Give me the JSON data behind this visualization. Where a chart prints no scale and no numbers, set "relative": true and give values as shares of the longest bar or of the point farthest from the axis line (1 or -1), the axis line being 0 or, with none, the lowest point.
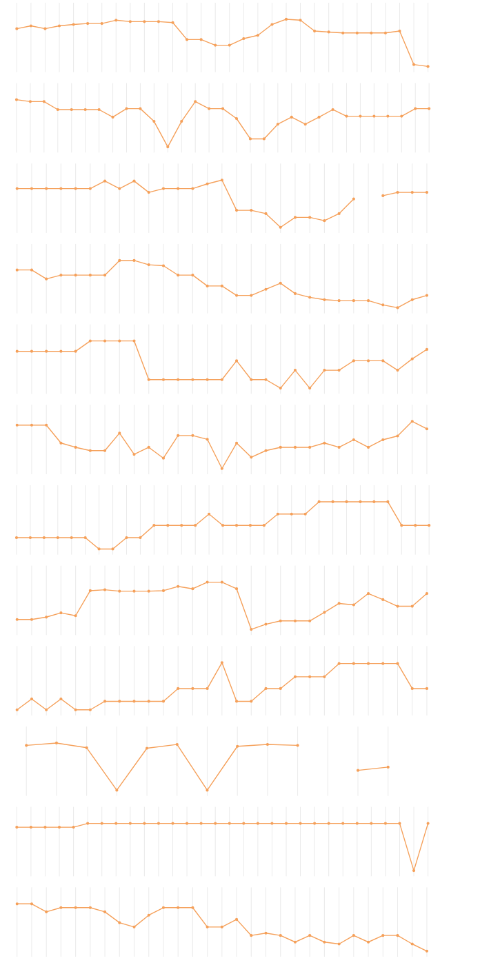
{
  "chart_data": [
    {
      "type": "line",
      "relative": true,
      "grid": "x",
      "marker": "circle",
      "categories": [
        null,
        null,
        null,
        null,
        null,
        null,
        null,
        null,
        null,
        null,
        null,
        null,
        null,
        null,
        null,
        null,
        null,
        null,
        null,
        null,
        null,
        null,
        null,
        null,
        null,
        null,
        null,
        null,
        null,
        null
      ],
      "series": [
        {
          "color": "#f5a05a",
          "values": [
            0.8,
            0.86,
            0.8,
            0.86,
            0.89,
            0.91,
            0.91,
            0.98,
            0.95,
            0.95,
            0.95,
            0.93,
            0.57,
            0.57,
            0.45,
            0.45,
            0.59,
            0.66,
            0.89,
            1,
            0.98,
            0.75,
            0.73,
            0.71,
            0.71,
            0.71,
            0.71,
            0.75,
            0.04,
            0
          ]
        }
      ]
    },
    {
      "type": "line",
      "relative": true,
      "grid": "x",
      "marker": "circle",
      "categories": [
        null,
        null,
        null,
        null,
        null,
        null,
        null,
        null,
        null,
        null,
        null,
        null,
        null,
        null,
        null,
        null,
        null,
        null,
        null,
        null,
        null,
        null,
        null,
        null,
        null,
        null,
        null,
        null,
        null,
        null,
        null
      ],
      "series": [
        {
          "color": "#f5a05a",
          "values": [
            1,
            0.96,
            0.96,
            0.79,
            0.79,
            0.79,
            0.79,
            0.63,
            0.81,
            0.81,
            0.54,
            0,
            0.54,
            0.96,
            0.81,
            0.81,
            0.6,
            0.17,
            0.17,
            0.48,
            0.63,
            0.48,
            0.63,
            0.79,
            0.65,
            0.65,
            0.65,
            0.65,
            0.65,
            0.81,
            0.81
          ]
        }
      ]
    },
    {
      "type": "line",
      "relative": true,
      "grid": "x",
      "marker": "circle",
      "categories": [
        null,
        null,
        null,
        null,
        null,
        null,
        null,
        null,
        null,
        null,
        null,
        null,
        null,
        null,
        null,
        null,
        null,
        null,
        null,
        null,
        null,
        null,
        null,
        null,
        null,
        null,
        null,
        null,
        null
      ],
      "series": [
        {
          "color": "#f5a05a",
          "values": [
            0.82,
            0.82,
            0.82,
            0.82,
            0.82,
            0.82,
            0.98,
            0.82,
            0.98,
            0.74,
            0.82,
            0.82,
            0.82,
            0.92,
            1,
            0.36,
            0.36,
            0.29,
            0,
            0.21,
            0.21,
            0.14,
            0.29,
            0.6,
            null,
            null,
            null,
            null,
            null
          ]
        },
        {
          "color": "#f5a05a",
          "values": [
            null,
            null,
            null,
            null,
            null,
            null,
            null,
            null,
            null,
            null,
            null,
            null,
            null,
            null,
            null,
            null,
            null,
            null,
            null,
            null,
            null,
            null,
            null,
            null,
            null,
            0.67,
            0.74,
            0.74,
            0.74
          ]
        }
      ]
    },
    {
      "type": "line",
      "relative": true,
      "grid": "x",
      "marker": "circle",
      "categories": [
        null,
        null,
        null,
        null,
        null,
        null,
        null,
        null,
        null,
        null,
        null,
        null,
        null,
        null,
        null,
        null,
        null,
        null,
        null,
        null,
        null,
        null,
        null,
        null,
        null,
        null,
        null,
        null,
        null
      ],
      "series": [
        {
          "color": "#f5a05a",
          "values": [
            0.8,
            0.8,
            0.61,
            0.69,
            0.69,
            0.69,
            0.69,
            1,
            1,
            0.91,
            0.89,
            0.69,
            0.69,
            0.46,
            0.46,
            0.26,
            0.26,
            0.39,
            0.52,
            0.3,
            0.22,
            0.17,
            0.15,
            0.15,
            0.15,
            0.06,
            0,
            0.17,
            0.26
          ]
        }
      ]
    },
    {
      "type": "line",
      "relative": true,
      "grid": "x",
      "marker": "circle",
      "categories": [
        null,
        null,
        null,
        null,
        null,
        null,
        null,
        null,
        null,
        null,
        null,
        null,
        null,
        null,
        null,
        null,
        null,
        null,
        null,
        null,
        null,
        null,
        null,
        null,
        null,
        null,
        null,
        null,
        null
      ],
      "series": [
        {
          "color": "#f5a05a",
          "values": [
            0.78,
            0.78,
            0.78,
            0.78,
            0.78,
            1,
            1,
            1,
            1,
            0.18,
            0.18,
            0.18,
            0.18,
            0.18,
            0.18,
            0.58,
            0.18,
            0.18,
            0,
            0.38,
            0,
            0.38,
            0.38,
            0.58,
            0.58,
            0.58,
            0.38,
            0.62,
            0.82
          ]
        }
      ]
    },
    {
      "type": "line",
      "relative": true,
      "grid": "x",
      "marker": "circle",
      "categories": [
        null,
        null,
        null,
        null,
        null,
        null,
        null,
        null,
        null,
        null,
        null,
        null,
        null,
        null,
        null,
        null,
        null,
        null,
        null,
        null,
        null,
        null,
        null,
        null,
        null,
        null,
        null,
        null,
        null
      ],
      "series": [
        {
          "color": "#f5a05a",
          "values": [
            0.92,
            0.92,
            0.92,
            0.54,
            0.45,
            0.38,
            0.38,
            0.75,
            0.3,
            0.45,
            0.22,
            0.7,
            0.7,
            0.62,
            0,
            0.54,
            0.24,
            0.38,
            0.45,
            0.45,
            0.45,
            0.54,
            0.45,
            0.61,
            0.45,
            0.61,
            0.69,
            1,
            0.84
          ]
        }
      ]
    },
    {
      "type": "line",
      "relative": true,
      "grid": "x",
      "marker": "circle",
      "categories": [
        null,
        null,
        null,
        null,
        null,
        null,
        null,
        null,
        null,
        null,
        null,
        null,
        null,
        null,
        null,
        null,
        null,
        null,
        null,
        null,
        null,
        null,
        null,
        null,
        null,
        null,
        null,
        null,
        null,
        null,
        null
      ],
      "series": [
        {
          "color": "#f5a05a",
          "values": [
            0.24,
            0.24,
            0.24,
            0.24,
            0.24,
            0.24,
            0,
            0,
            0.24,
            0.24,
            0.5,
            0.5,
            0.5,
            0.5,
            0.74,
            0.5,
            0.5,
            0.5,
            0.5,
            0.74,
            0.74,
            0.74,
            1,
            1,
            1,
            1,
            1,
            1,
            0.5,
            0.5,
            0.5
          ]
        }
      ]
    },
    {
      "type": "line",
      "relative": true,
      "grid": "x",
      "marker": "circle",
      "categories": [
        null,
        null,
        null,
        null,
        null,
        null,
        null,
        null,
        null,
        null,
        null,
        null,
        null,
        null,
        null,
        null,
        null,
        null,
        null,
        null,
        null,
        null,
        null,
        null,
        null,
        null,
        null,
        null,
        null
      ],
      "series": [
        {
          "color": "#f5a05a",
          "values": [
            0.21,
            0.21,
            0.26,
            0.35,
            0.29,
            0.82,
            0.84,
            0.81,
            0.81,
            0.81,
            0.82,
            0.91,
            0.86,
            1,
            1,
            0.86,
            0,
            0.11,
            0.18,
            0.18,
            0.18,
            0.36,
            0.55,
            0.52,
            0.76,
            0.63,
            0.49,
            0.49,
            0.76
          ]
        }
      ]
    },
    {
      "type": "line",
      "relative": true,
      "grid": "x",
      "marker": "circle",
      "categories": [
        null,
        null,
        null,
        null,
        null,
        null,
        null,
        null,
        null,
        null,
        null,
        null,
        null,
        null,
        null,
        null,
        null,
        null,
        null,
        null,
        null,
        null,
        null,
        null,
        null,
        null,
        null,
        null,
        null
      ],
      "series": [
        {
          "color": "#f5a05a",
          "values": [
            0,
            0.23,
            0,
            0.23,
            0,
            0,
            0.18,
            0.18,
            0.18,
            0.18,
            0.18,
            0.45,
            0.45,
            0.45,
            1,
            0.18,
            0.18,
            0.45,
            0.45,
            0.7,
            0.7,
            0.7,
            0.98,
            0.98,
            0.98,
            0.98,
            0.98,
            0.45,
            0.45
          ]
        }
      ]
    },
    {
      "type": "line",
      "relative": true,
      "grid": "x",
      "marker": "circle",
      "categories": [
        null,
        null,
        null,
        null,
        null,
        null,
        null,
        null,
        null,
        null,
        null,
        null,
        null
      ],
      "series": [
        {
          "color": "#f5a05a",
          "values": [
            0.95,
            1,
            0.9,
            0,
            0.89,
            0.97,
            0,
            0.93,
            0.97,
            0.95,
            null,
            null,
            null
          ]
        },
        {
          "color": "#f5a05a",
          "values": [
            null,
            null,
            null,
            null,
            null,
            null,
            null,
            null,
            null,
            null,
            null,
            0.42,
            0.49
          ]
        }
      ]
    },
    {
      "type": "line",
      "relative": true,
      "grid": "x",
      "marker": "circle",
      "categories": [
        null,
        null,
        null,
        null,
        null,
        null,
        null,
        null,
        null,
        null,
        null,
        null,
        null,
        null,
        null,
        null,
        null,
        null,
        null,
        null,
        null,
        null,
        null,
        null,
        null,
        null,
        null,
        null,
        null,
        null
      ],
      "series": [
        {
          "color": "#f5a05a",
          "values": [
            0.92,
            0.92,
            0.92,
            0.92,
            0.92,
            1,
            1,
            1,
            1,
            1,
            1,
            1,
            1,
            1,
            1,
            1,
            1,
            1,
            1,
            1,
            1,
            1,
            1,
            1,
            1,
            1,
            1,
            1,
            0,
            1
          ]
        }
      ]
    },
    {
      "type": "line",
      "relative": true,
      "grid": "x",
      "marker": "circle",
      "categories": [
        null,
        null,
        null,
        null,
        null,
        null,
        null,
        null,
        null,
        null,
        null,
        null,
        null,
        null,
        null,
        null,
        null,
        null,
        null,
        null,
        null,
        null,
        null,
        null,
        null,
        null,
        null,
        null,
        null
      ],
      "series": [
        {
          "color": "#f5a05a",
          "values": [
            1,
            1,
            0.83,
            0.92,
            0.92,
            0.92,
            0.83,
            0.6,
            0.51,
            0.76,
            0.92,
            0.92,
            0.92,
            0.51,
            0.51,
            0.67,
            0.33,
            0.38,
            0.33,
            0.19,
            0.33,
            0.19,
            0.15,
            0.33,
            0.19,
            0.33,
            0.33,
            0.15,
            0
          ]
        }
      ]
    }
  ]
}
